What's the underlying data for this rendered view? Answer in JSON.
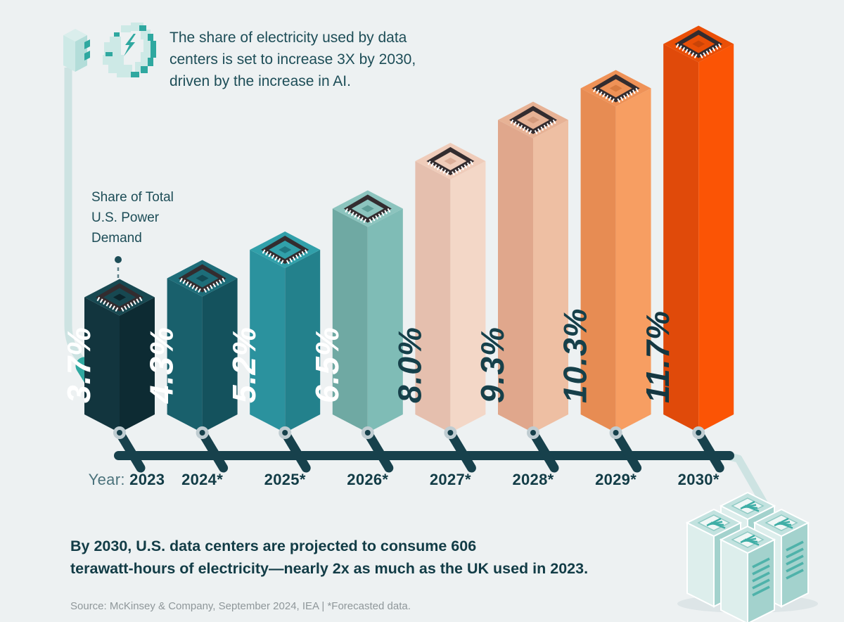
{
  "header": {
    "title": "The share of electricity used by data centers is set to increase 3X by 2030, driven by the increase in AI."
  },
  "annotation": {
    "label": "Share of Total U.S. Power Demand"
  },
  "chart_data": {
    "type": "bar",
    "title": "Share of Total U.S. Power Demand by data centers, 2023-2030",
    "x_axis_prefix": "Year:",
    "categories": [
      "2023",
      "2024*",
      "2025*",
      "2026*",
      "2027*",
      "2028*",
      "2029*",
      "2030*"
    ],
    "values": [
      3.7,
      4.3,
      5.2,
      6.5,
      8.0,
      9.3,
      10.3,
      11.7
    ],
    "labels": [
      "3.7%",
      "4.3%",
      "5.2%",
      "6.5%",
      "8.0%",
      "9.3%",
      "10.3%",
      "11.7%"
    ],
    "unit": "%",
    "legend": "none",
    "grid": "off",
    "bar_colors": [
      {
        "side": "#12353e",
        "face": "#0d2b33",
        "top": "#174851",
        "chip": "#0b262d",
        "text": "#ffffff"
      },
      {
        "side": "#19606c",
        "face": "#14525d",
        "top": "#1d6d79",
        "chip": "#124a54",
        "text": "#ffffff"
      },
      {
        "side": "#2b929e",
        "face": "#23818c",
        "top": "#31a0aa",
        "chip": "#1f7681",
        "text": "#ffffff"
      },
      {
        "side": "#6fa9a3",
        "face": "#7fbcb6",
        "top": "#8cc4be",
        "chip": "#5f9e98",
        "text": "#ffffff"
      },
      {
        "side": "#e5bfae",
        "face": "#f3d7c7",
        "top": "#efccba",
        "chip": "#dcae99",
        "text": "#16404a"
      },
      {
        "side": "#e0a78c",
        "face": "#eebfa3",
        "top": "#e7b295",
        "chip": "#d49a7c",
        "text": "#16404a"
      },
      {
        "side": "#e78c53",
        "face": "#f79e62",
        "top": "#ef9257",
        "chip": "#d97c41",
        "text": "#16404a"
      },
      {
        "side": "#e04a0a",
        "face": "#fb5405",
        "top": "#ea4f07",
        "chip": "#c84408",
        "text": "#143741"
      }
    ],
    "axis_line_color": "#17414c",
    "connector_color": "#bfccd1",
    "chip_border_color": "#332c2f"
  },
  "footer": {
    "headline_lines": [
      "By 2030, U.S. data centers are projected to consume 606",
      "terawatt-hours of electricity—nearly 2x as much as the UK used in 2023."
    ],
    "source": "Source: McKinsey & Company, September 2024, IEA | *Forecasted data."
  },
  "icons": {
    "plug": "power-plug-icon",
    "brain": "pixel-ai-brain-icon",
    "chip": "cpu-chip-icon",
    "servers": "server-racks-icon"
  },
  "style": {
    "background": "#edf1f2",
    "cable_color": "#cde3e2",
    "cable_accent": "#2fa8a0",
    "icon_light": "#cde9e6",
    "icon_dark": "#2fa8a0"
  }
}
